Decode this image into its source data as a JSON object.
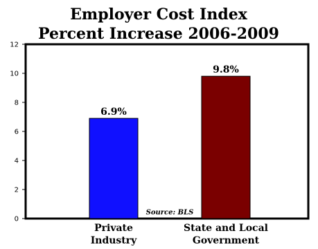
{
  "chart_data": {
    "type": "bar",
    "title_lines": [
      "Employer Cost Index",
      "Percent Increase 2006-2009"
    ],
    "categories": [
      [
        "Private",
        "Industry"
      ],
      [
        "State and Local",
        "Government"
      ]
    ],
    "values": [
      6.9,
      9.8
    ],
    "data_labels": [
      "6.9%",
      "9.8%"
    ],
    "colors": [
      "#1010ff",
      "#7a0000"
    ],
    "ylim": [
      0,
      12
    ],
    "yticks": [
      0,
      2,
      4,
      6,
      8,
      10,
      12
    ],
    "ytick_labels": [
      "0",
      "2",
      "4",
      "6",
      "8",
      "10",
      "12"
    ],
    "grid": false,
    "legend": "none",
    "annotation": "Source: BLS"
  }
}
